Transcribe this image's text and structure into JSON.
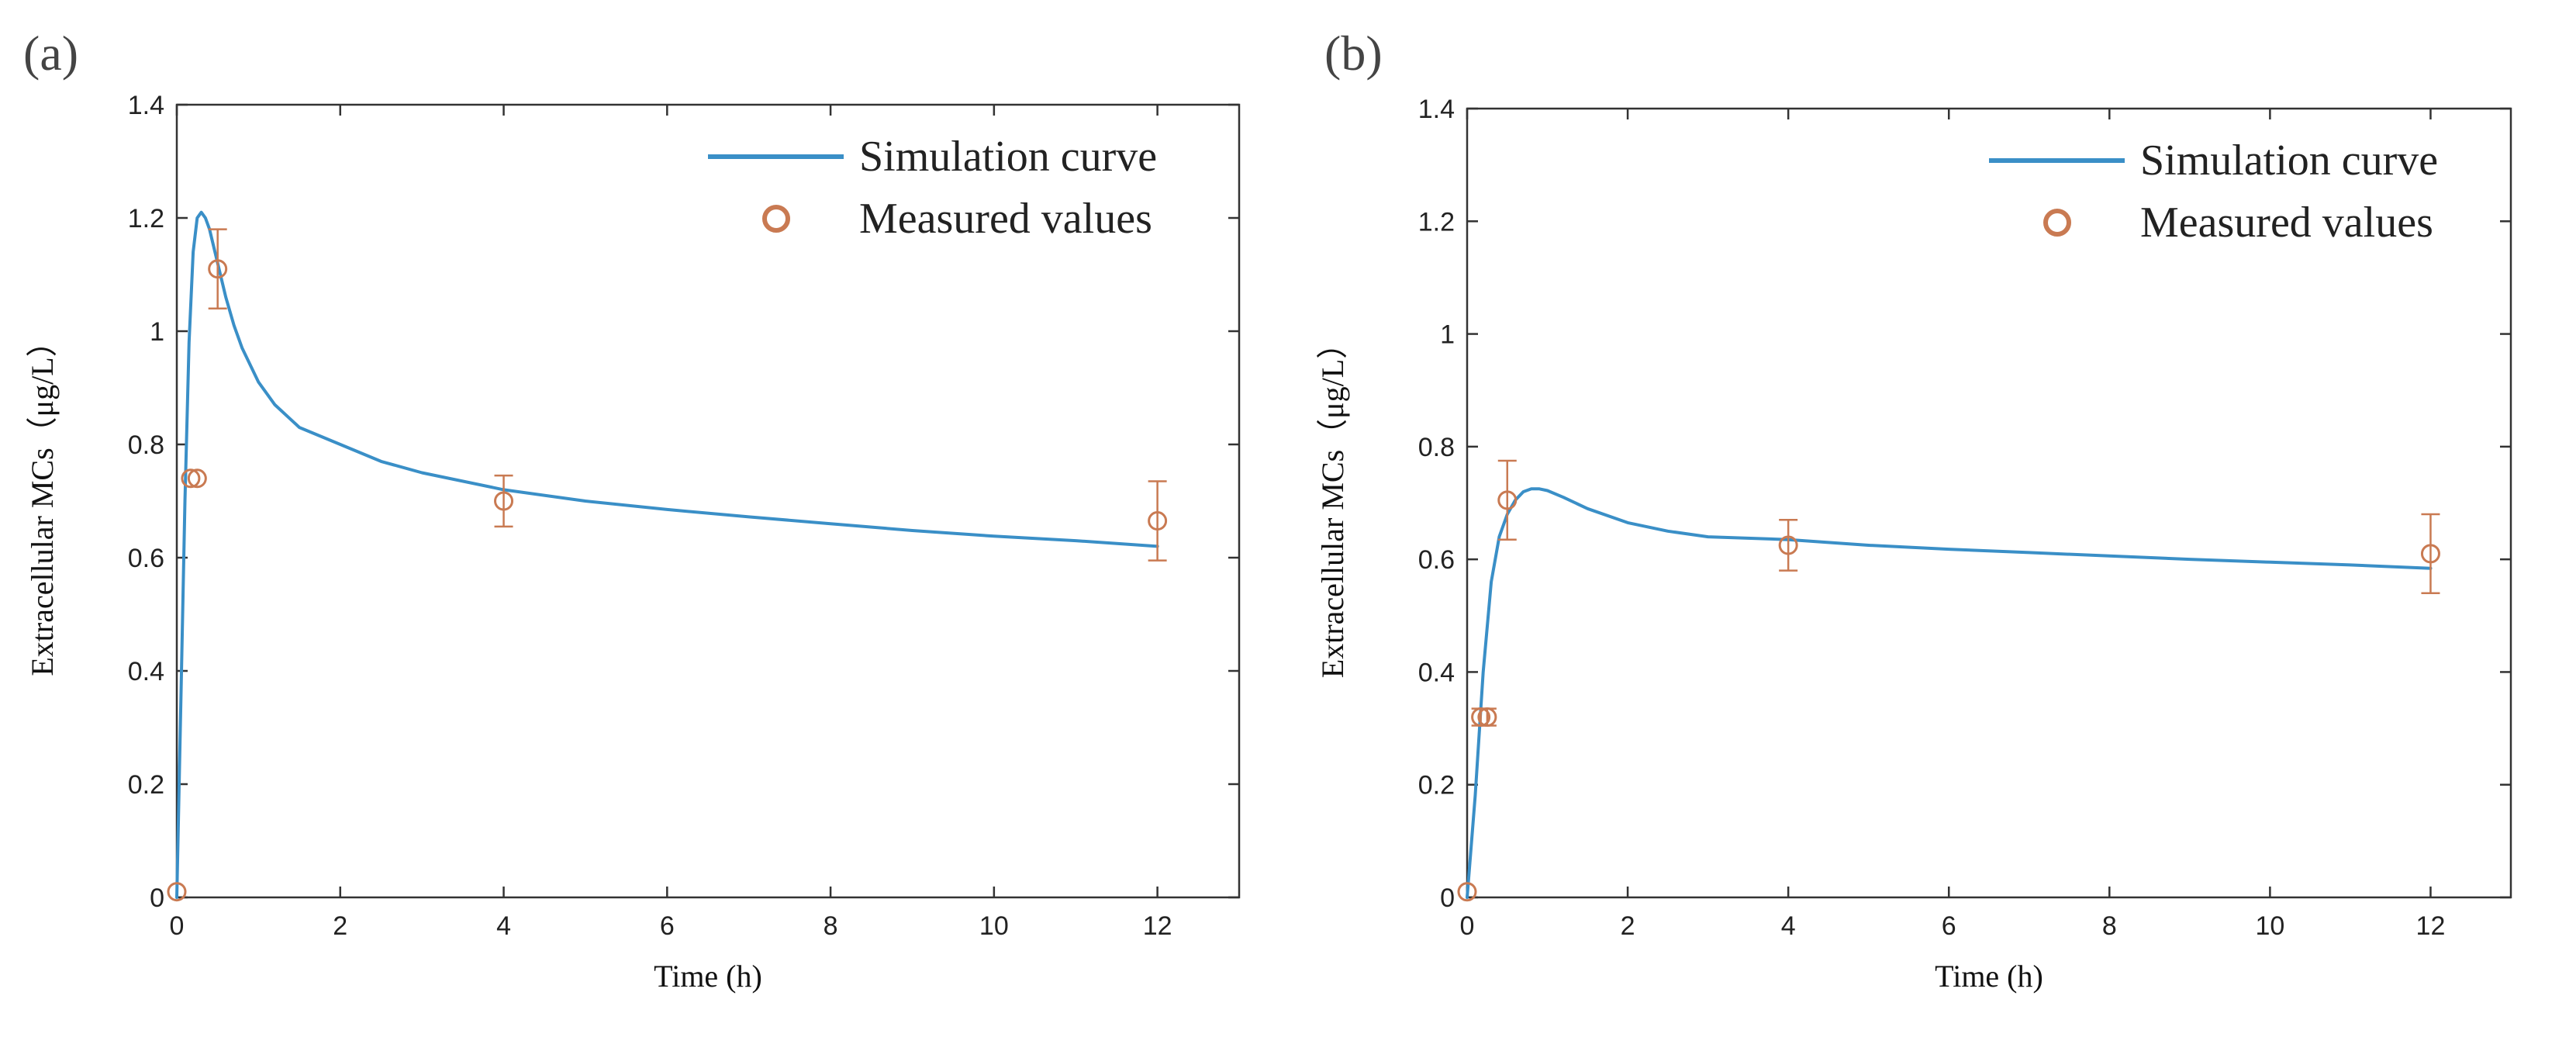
{
  "figure": {
    "colors": {
      "curve": "#3a8fc7",
      "measured": "#c97a52",
      "axis": "#333333"
    }
  },
  "chart_data": [
    {
      "type": "line",
      "panel_label": "(a)",
      "xlabel": "Time (h)",
      "ylabel": "Extracellular MCs（μg/L）",
      "xlim": [
        0,
        13
      ],
      "ylim": [
        0,
        1.4
      ],
      "xticks": [
        0,
        2,
        4,
        6,
        8,
        10,
        12
      ],
      "yticks": [
        0,
        0.2,
        0.4,
        0.6,
        0.8,
        1,
        1.2,
        1.4
      ],
      "xtick_labels": [
        "0",
        "2",
        "4",
        "6",
        "8",
        "10",
        "12"
      ],
      "ytick_labels": [
        "0",
        "0.2",
        "0.4",
        "0.6",
        "0.8",
        "1",
        "1.2",
        "1.4"
      ],
      "legend": {
        "position": "top-right",
        "entries": [
          "Simulation curve",
          "Measured values"
        ]
      },
      "series": [
        {
          "name": "Simulation curve",
          "kind": "line",
          "x": [
            0,
            0.05,
            0.1,
            0.15,
            0.2,
            0.25,
            0.3,
            0.35,
            0.4,
            0.5,
            0.6,
            0.7,
            0.8,
            1.0,
            1.2,
            1.5,
            2.0,
            2.5,
            3.0,
            4.0,
            5.0,
            6.0,
            7.0,
            8.0,
            9.0,
            10.0,
            11.0,
            12.0
          ],
          "y": [
            0.0,
            0.35,
            0.7,
            0.98,
            1.14,
            1.2,
            1.21,
            1.2,
            1.18,
            1.12,
            1.06,
            1.01,
            0.97,
            0.91,
            0.87,
            0.83,
            0.8,
            0.77,
            0.75,
            0.72,
            0.7,
            0.685,
            0.672,
            0.66,
            0.648,
            0.638,
            0.63,
            0.62
          ]
        },
        {
          "name": "Measured values",
          "kind": "scatter",
          "x": [
            0,
            0.17,
            0.25,
            0.5,
            4,
            12
          ],
          "y": [
            0.01,
            0.74,
            0.74,
            1.11,
            0.7,
            0.665
          ],
          "err": [
            0,
            0,
            0,
            0.07,
            0.045,
            0.07
          ]
        }
      ]
    },
    {
      "type": "line",
      "panel_label": "(b)",
      "xlabel": "Time (h)",
      "ylabel": "Extracellular MCs（μg/L）",
      "xlim": [
        0,
        13
      ],
      "ylim": [
        0,
        1.4
      ],
      "xticks": [
        0,
        2,
        4,
        6,
        8,
        10,
        12
      ],
      "yticks": [
        0,
        0.2,
        0.4,
        0.6,
        0.8,
        1,
        1.2,
        1.4
      ],
      "xtick_labels": [
        "0",
        "2",
        "4",
        "6",
        "8",
        "10",
        "12"
      ],
      "ytick_labels": [
        "0",
        "0.2",
        "0.4",
        "0.6",
        "0.8",
        "1",
        "1.2",
        "1.4"
      ],
      "legend": {
        "position": "top-right",
        "entries": [
          "Simulation curve",
          "Measured values"
        ]
      },
      "series": [
        {
          "name": "Simulation curve",
          "kind": "line",
          "x": [
            0,
            0.1,
            0.2,
            0.3,
            0.4,
            0.5,
            0.6,
            0.7,
            0.8,
            0.9,
            1.0,
            1.2,
            1.5,
            2.0,
            2.5,
            3.0,
            4.0,
            5.0,
            6.0,
            7.0,
            8.0,
            9.0,
            10.0,
            11.0,
            12.0
          ],
          "y": [
            0.0,
            0.18,
            0.4,
            0.56,
            0.64,
            0.68,
            0.705,
            0.72,
            0.725,
            0.725,
            0.722,
            0.71,
            0.69,
            0.665,
            0.65,
            0.64,
            0.635,
            0.625,
            0.618,
            0.612,
            0.606,
            0.6,
            0.595,
            0.59,
            0.584
          ]
        },
        {
          "name": "Measured values",
          "kind": "scatter",
          "x": [
            0,
            0.17,
            0.25,
            0.5,
            4,
            12
          ],
          "y": [
            0.01,
            0.32,
            0.32,
            0.705,
            0.625,
            0.61
          ],
          "err": [
            0,
            0.015,
            0.015,
            0.07,
            0.045,
            0.07
          ]
        }
      ]
    }
  ]
}
